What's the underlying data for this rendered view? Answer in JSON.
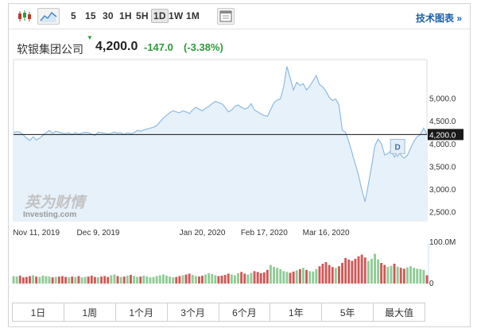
{
  "toolbar": {
    "timeframes": [
      "5",
      "15",
      "30",
      "1H",
      "5H",
      "1D",
      "1W",
      "1M"
    ],
    "active_timeframe": "1D",
    "tech_chart_link": "技术图表 »"
  },
  "header": {
    "name": "软银集团公司",
    "price": "4,200.0",
    "change": "-147.0",
    "change_pct": "(-3.38%)",
    "change_color": "#2e9a3d"
  },
  "watermark": {
    "cn": "英为财情",
    "en": "Investing.com"
  },
  "ranges": [
    "1日",
    "1周",
    "1个月",
    "3个月",
    "6个月",
    "1年",
    "5年",
    "最大值"
  ],
  "chart_data": {
    "type": "area",
    "x_tick_labels": [
      "Nov 11, 2019",
      "Dec 9, 2019",
      "Jan 20, 2020",
      "Feb 17, 2020",
      "Mar 16, 2020"
    ],
    "y_tick_labels": [
      "5,000.0",
      "4,500.0",
      "4,000.0",
      "3,500.0",
      "3,000.0",
      "2,500.0"
    ],
    "y_ticks": [
      5000,
      4500,
      4000,
      3500,
      3000,
      2500
    ],
    "ylim": [
      2300,
      5850
    ],
    "current_price": 4200,
    "current_label": "4,200.0",
    "event_marker": "D",
    "colors": {
      "line": "#8fbbe0",
      "fill": "#e7f1fa",
      "price_line": "#111111",
      "vol_up": "#8fcc96",
      "vol_down": "#d05858"
    },
    "close": [
      4245,
      4260,
      4250,
      4190,
      4120,
      4070,
      4150,
      4080,
      4120,
      4180,
      4240,
      4290,
      4230,
      4270,
      4250,
      4230,
      4220,
      4240,
      4200,
      4240,
      4210,
      4230,
      4250,
      4240,
      4210,
      4180,
      4250,
      4240,
      4230,
      4210,
      4230,
      4250,
      4230,
      4240,
      4200,
      4240,
      4220,
      4240,
      4290,
      4270,
      4300,
      4320,
      4340,
      4360,
      4400,
      4480,
      4560,
      4620,
      4680,
      4720,
      4700,
      4680,
      4720,
      4700,
      4660,
      4740,
      4800,
      4760,
      4720,
      4780,
      4820,
      4880,
      4930,
      4900,
      4880,
      4800,
      4700,
      4740,
      4820,
      4850,
      4800,
      4760,
      4790,
      4880,
      4740,
      4700,
      4650,
      4620,
      4600,
      4750,
      4900,
      4960,
      4980,
      5250,
      5700,
      5450,
      5180,
      5350,
      5280,
      5320,
      5180,
      5260,
      5380,
      5500,
      5300,
      5250,
      5150,
      5020,
      4950,
      4980,
      4850,
      4300,
      4250,
      4050,
      3800,
      3550,
      3300,
      2980,
      2720,
      3100,
      3500,
      3950,
      4100,
      4000,
      3750,
      3780,
      3850,
      3700,
      3820,
      3750,
      3680,
      3740,
      3900,
      4050,
      4150,
      4200,
      4340,
      4200
    ],
    "volume": [
      18,
      17,
      19,
      15,
      16,
      18,
      20,
      17,
      16,
      19,
      18,
      17,
      15,
      16,
      17,
      18,
      16,
      15,
      17,
      16,
      18,
      15,
      16,
      17,
      19,
      16,
      15,
      17,
      18,
      16,
      20,
      22,
      18,
      16,
      17,
      19,
      21,
      18,
      16,
      17,
      19,
      17,
      15,
      16,
      18,
      20,
      22,
      19,
      17,
      15,
      16,
      18,
      20,
      22,
      24,
      21,
      18,
      17,
      19,
      22,
      25,
      23,
      20,
      18,
      19,
      21,
      24,
      22,
      20,
      25,
      28,
      24,
      22,
      26,
      30,
      28,
      25,
      27,
      33,
      45,
      40,
      38,
      35,
      30,
      28,
      26,
      29,
      32,
      35,
      38,
      33,
      30,
      29,
      35,
      42,
      48,
      52,
      45,
      40,
      38,
      42,
      50,
      62,
      58,
      55,
      60,
      66,
      70,
      63,
      55,
      60,
      72,
      58,
      50,
      45,
      40,
      43,
      48,
      41,
      38,
      36,
      39,
      42,
      38,
      36,
      35,
      33,
      20
    ],
    "volume_max_label": "100.0M",
    "volume_zero_label": "0",
    "volume_max": 100
  }
}
